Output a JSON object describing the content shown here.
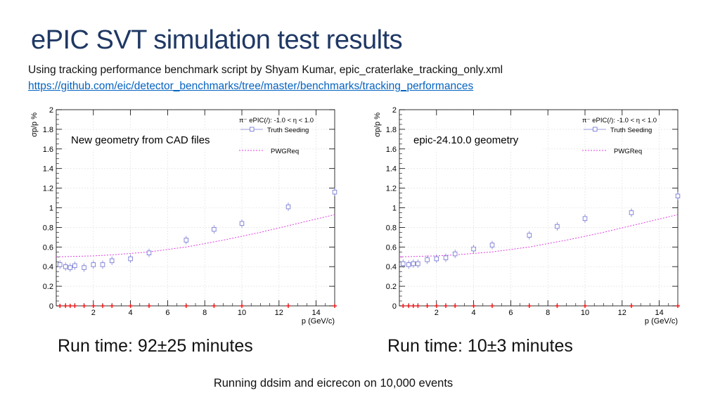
{
  "slide": {
    "title": "ePIC SVT simulation test results",
    "subtitle": "Using tracking performance benchmark script by Shyam Kumar, epic_craterlake_tracking_only.xml",
    "link": "https://github.com/eic/detector_benchmarks/tree/master/benchmarks/tracking_performances",
    "runtime_left": "Run time: 92±25 minutes",
    "runtime_right": "Run time: 10±3 minutes",
    "footer": "Running ddsim and eicrecon on 10,000 events"
  },
  "colors": {
    "truth_seeding": "#7b7bd6",
    "pwgreq": "#e040e0",
    "zero_markers": "#ee1111",
    "axis": "#000000",
    "grid": "#dddddd"
  },
  "chart_data": [
    {
      "type": "scatter",
      "annotation": "New geometry from CAD files",
      "xlabel": "p (GeV/c)",
      "ylabel": "σp/p %",
      "xlim": [
        0,
        15
      ],
      "ylim": [
        0,
        2
      ],
      "xticks": [
        "2",
        "4",
        "6",
        "8",
        "10",
        "12",
        "14"
      ],
      "yticks": [
        "0",
        "0.2",
        "0.4",
        "0.6",
        "0.8",
        "1",
        "1.2",
        "1.4",
        "1.6",
        "1.8",
        "2"
      ],
      "grid": true,
      "legend_position": "top-right",
      "legend_header": "π⁻ ePIC(/): -1.0 < η < 1.0",
      "series": [
        {
          "name": "Truth Seeding",
          "x": [
            0.2,
            0.5,
            0.75,
            1.0,
            1.5,
            2.0,
            2.5,
            3.0,
            4.0,
            5.0,
            7.0,
            8.5,
            10.0,
            12.5,
            15.0
          ],
          "y": [
            0.42,
            0.4,
            0.39,
            0.41,
            0.39,
            0.42,
            0.42,
            0.46,
            0.48,
            0.54,
            0.67,
            0.78,
            0.84,
            1.01,
            1.16
          ]
        },
        {
          "name": "PWGReq",
          "type": "curve",
          "x": [
            0,
            1,
            2,
            3,
            4,
            5,
            6,
            7,
            8,
            9,
            10,
            11,
            12,
            13,
            14,
            15
          ],
          "y": [
            0.5,
            0.505,
            0.51,
            0.52,
            0.535,
            0.55,
            0.575,
            0.6,
            0.635,
            0.67,
            0.71,
            0.75,
            0.795,
            0.84,
            0.885,
            0.93
          ]
        },
        {
          "name": "",
          "x": [
            0.2,
            0.5,
            0.75,
            1.0,
            1.5,
            2.0,
            2.5,
            3.0,
            4.0,
            5.0,
            7.0,
            8.5,
            10.0,
            12.5,
            15.0
          ],
          "y": [
            0,
            0,
            0,
            0,
            0,
            0,
            0,
            0,
            0,
            0,
            0,
            0,
            0,
            0,
            0
          ]
        }
      ]
    },
    {
      "type": "scatter",
      "annotation": "epic-24.10.0 geometry",
      "xlabel": "p (GeV/c)",
      "ylabel": "σp/p %",
      "xlim": [
        0,
        15
      ],
      "ylim": [
        0,
        2
      ],
      "xticks": [
        "2",
        "4",
        "6",
        "8",
        "10",
        "12",
        "14"
      ],
      "yticks": [
        "0",
        "0.2",
        "0.4",
        "0.6",
        "0.8",
        "1",
        "1.2",
        "1.4",
        "1.6",
        "1.8",
        "2"
      ],
      "grid": true,
      "legend_position": "top-right",
      "legend_header": "π⁻ ePIC(/): -1.0 < η < 1.0",
      "series": [
        {
          "name": "Truth Seeding",
          "x": [
            0.2,
            0.5,
            0.75,
            1.0,
            1.5,
            2.0,
            2.5,
            3.0,
            4.0,
            5.0,
            7.0,
            8.5,
            10.0,
            12.5,
            15.0
          ],
          "y": [
            0.43,
            0.42,
            0.43,
            0.43,
            0.47,
            0.48,
            0.49,
            0.53,
            0.58,
            0.62,
            0.72,
            0.81,
            0.89,
            0.95,
            1.12
          ]
        },
        {
          "name": "PWGReq",
          "type": "curve",
          "x": [
            0,
            1,
            2,
            3,
            4,
            5,
            6,
            7,
            8,
            9,
            10,
            11,
            12,
            13,
            14,
            15
          ],
          "y": [
            0.5,
            0.505,
            0.51,
            0.52,
            0.535,
            0.55,
            0.575,
            0.6,
            0.635,
            0.67,
            0.71,
            0.75,
            0.795,
            0.84,
            0.885,
            0.93
          ]
        },
        {
          "name": "",
          "x": [
            0.2,
            0.5,
            0.75,
            1.0,
            1.5,
            2.0,
            2.5,
            3.0,
            4.0,
            5.0,
            7.0,
            8.5,
            10.0,
            12.5,
            15.0
          ],
          "y": [
            0,
            0,
            0,
            0,
            0,
            0,
            0,
            0,
            0,
            0,
            0,
            0,
            0,
            0,
            0
          ]
        }
      ]
    }
  ]
}
